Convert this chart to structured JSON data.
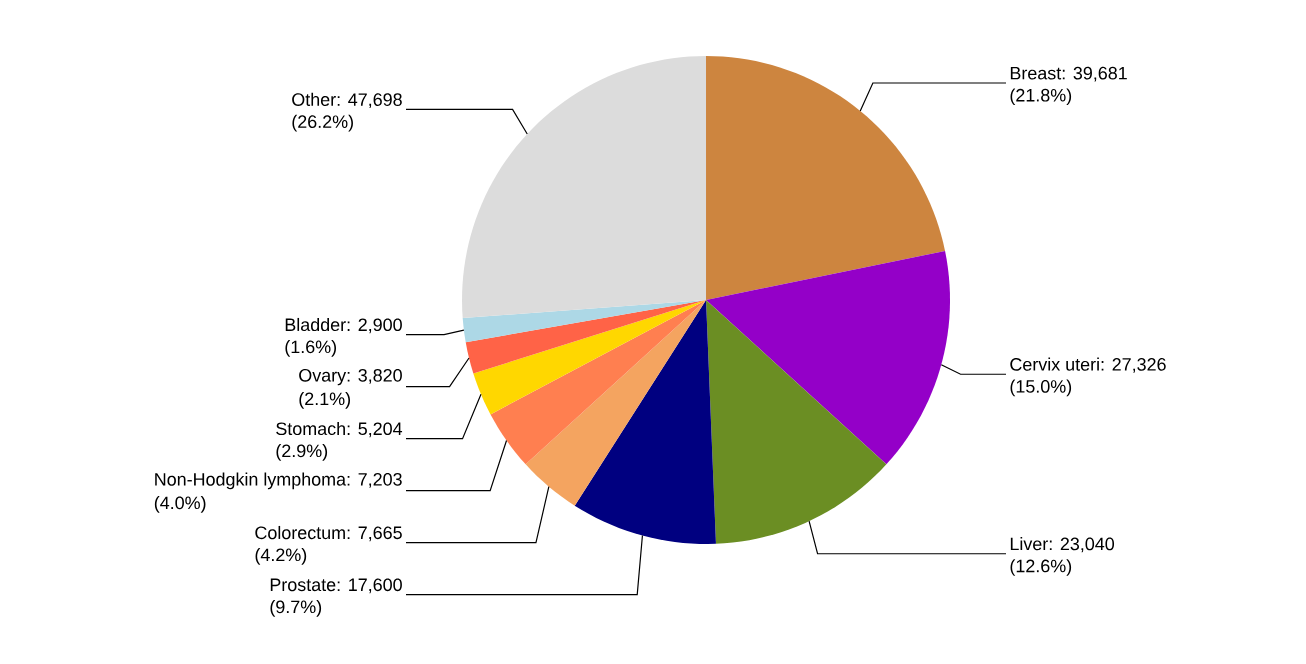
{
  "chart_data": {
    "type": "pie",
    "categories": [
      "Breast: 39,681",
      "Cervix uteri: 27,326",
      "Liver: 23,040",
      "Prostate: 17,600",
      "Colorectum: 7,665",
      "Non-Hodgkin lymphoma: 7,203",
      "Stomach: 5,204",
      "Ovary: 3,820",
      "Bladder: 2,900",
      "Other: 47,698"
    ],
    "values": [
      21.8,
      15.0,
      12.6,
      9.7,
      4.2,
      4.0,
      2.9,
      2.1,
      1.6,
      26.2
    ],
    "value_labels": [
      "(21.8%)",
      "(15.0%)",
      "(12.6%)",
      "(9.7%)",
      "(4.2%)",
      "(4.0%)",
      "(2.9%)",
      "(2.1%)",
      "(1.6%)",
      "(26.2%)"
    ],
    "colors": [
      "#cd853f",
      "#9400c8",
      "#6b8e23",
      "#000080",
      "#f4a460",
      "#ff7f50",
      "#ffd700",
      "#ff6347",
      "#add8e6",
      "#dcdcdc"
    ]
  }
}
